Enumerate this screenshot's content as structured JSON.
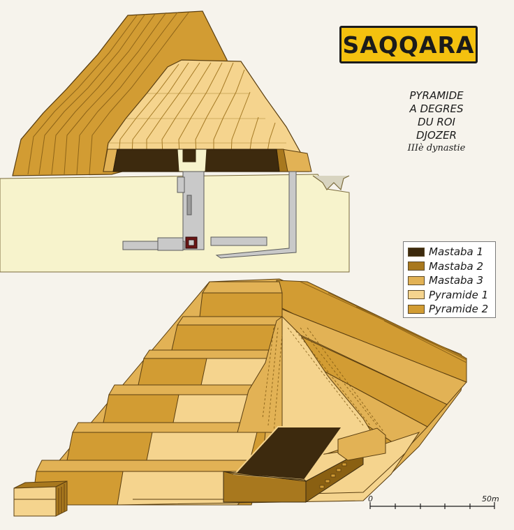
{
  "title": "SAQQARA",
  "caption": {
    "lines": [
      "PYRAMIDE",
      "A DEGRES",
      "DU ROI",
      "DJOZER"
    ],
    "dynasty": "IIIè dynastie"
  },
  "legend": [
    {
      "label": "Mastaba 1",
      "color": "#3d2a0e"
    },
    {
      "label": "Mastaba 2",
      "color": "#a8781e"
    },
    {
      "label": "Mastaba 3",
      "color": "#e2b255"
    },
    {
      "label": "Pyramide 1",
      "color": "#f5d48e"
    },
    {
      "label": "Pyramide 2",
      "color": "#d29c33"
    }
  ],
  "scale": {
    "start": "0",
    "end": "50m"
  },
  "colors": {
    "background": "#f6f3ec",
    "ground": "#f7f3cc",
    "shaft": "#c9c9c9",
    "outline": "#3a2a10"
  }
}
